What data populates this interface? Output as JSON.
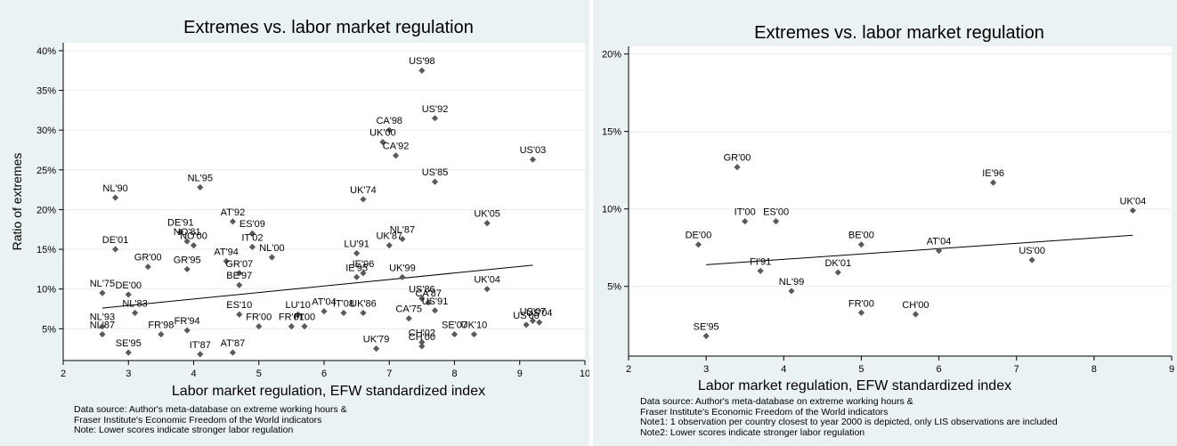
{
  "colors": {
    "panel_bg": "#eaf2f3",
    "plot_bg": "#ffffff",
    "grid": "#e6eeef",
    "marker": "#5a5a5a",
    "text": "#000000"
  },
  "left": {
    "notes": [
      "Data source: Author's meta-database on extreme working hours &",
      "Fraser Institute's Economic Freedom of the World indicators",
      "Note: Lower scores indicate stronger labor regulation"
    ]
  },
  "right": {
    "notes": [
      "Data source: Author's meta-database on extreme working hours &",
      "Fraser Institute's Economic Freedom of the World indicators",
      "Note1: 1 observation per country closest to year 2000 is depicted, only LIS observations are included",
      "Note2: Lower scores indicate stronger labor regulation"
    ]
  },
  "chart_data": [
    {
      "type": "scatter",
      "title": "Extremes vs. labor market regulation",
      "xlabel": "Labor market regulation, EFW standardized index",
      "ylabel": "Ratio of extremes",
      "xlim": [
        2,
        10
      ],
      "ylim": [
        1,
        41
      ],
      "xticks": [
        2,
        3,
        4,
        5,
        6,
        7,
        8,
        9,
        10
      ],
      "xtick_labels": [
        "2",
        "3",
        "4",
        "5",
        "6",
        "7",
        "8",
        "9",
        "10"
      ],
      "yticks": [
        5,
        10,
        15,
        20,
        25,
        30,
        35,
        40
      ],
      "ytick_labels": [
        "5%",
        "10%",
        "15%",
        "20%",
        "25%",
        "30%",
        "35%",
        "40%"
      ],
      "grid": true,
      "fit_line": {
        "x": [
          2.6,
          9.2
        ],
        "y": [
          7.6,
          13.0
        ]
      },
      "points": [
        {
          "label": "US'98",
          "x": 7.5,
          "y": 37.5
        },
        {
          "label": "US'92",
          "x": 7.7,
          "y": 31.5
        },
        {
          "label": "CA'98",
          "x": 7.0,
          "y": 30.0
        },
        {
          "label": "UK'00",
          "x": 6.9,
          "y": 28.5
        },
        {
          "label": "CA'92",
          "x": 7.1,
          "y": 26.8
        },
        {
          "label": "US'03",
          "x": 9.2,
          "y": 26.3
        },
        {
          "label": "US'85",
          "x": 7.7,
          "y": 23.5
        },
        {
          "label": "NL'90",
          "x": 2.8,
          "y": 21.5
        },
        {
          "label": "NL'95",
          "x": 4.1,
          "y": 22.8
        },
        {
          "label": "UK'74",
          "x": 6.6,
          "y": 21.3
        },
        {
          "label": "UK'05",
          "x": 8.5,
          "y": 18.3
        },
        {
          "label": "AT'92",
          "x": 4.6,
          "y": 18.5
        },
        {
          "label": "ES'09",
          "x": 4.9,
          "y": 17.0
        },
        {
          "label": "DE'91",
          "x": 3.8,
          "y": 17.2
        },
        {
          "label": "NO'81",
          "x": 3.9,
          "y": 16.0
        },
        {
          "label": "NO'00",
          "x": 4.0,
          "y": 15.5
        },
        {
          "label": "IT'02",
          "x": 4.9,
          "y": 15.3
        },
        {
          "label": "DE'01",
          "x": 2.8,
          "y": 15.0
        },
        {
          "label": "NL'00",
          "x": 5.2,
          "y": 14.0
        },
        {
          "label": "NL'87",
          "x": 7.2,
          "y": 16.3
        },
        {
          "label": "UK'87",
          "x": 7.0,
          "y": 15.5
        },
        {
          "label": "LU'91",
          "x": 6.5,
          "y": 14.5
        },
        {
          "label": "AT'94",
          "x": 4.5,
          "y": 13.5
        },
        {
          "label": "GR'00",
          "x": 3.3,
          "y": 12.8
        },
        {
          "label": "GR'95",
          "x": 3.9,
          "y": 12.5
        },
        {
          "label": "GR'07",
          "x": 4.7,
          "y": 12.0
        },
        {
          "label": "IE'96",
          "x": 6.6,
          "y": 12.0
        },
        {
          "label": "IE'95",
          "x": 6.5,
          "y": 11.5
        },
        {
          "label": "UK'99",
          "x": 7.2,
          "y": 11.5
        },
        {
          "label": "BE'97",
          "x": 4.7,
          "y": 10.5
        },
        {
          "label": "NL'75",
          "x": 2.6,
          "y": 9.5
        },
        {
          "label": "DE'00",
          "x": 3.0,
          "y": 9.3
        },
        {
          "label": "UK'04",
          "x": 8.5,
          "y": 10.0
        },
        {
          "label": "US'86",
          "x": 7.5,
          "y": 8.8
        },
        {
          "label": "AT'04",
          "x": 6.0,
          "y": 7.2
        },
        {
          "label": "CA'87",
          "x": 7.6,
          "y": 8.3
        },
        {
          "label": "US'91",
          "x": 7.7,
          "y": 7.3
        },
        {
          "label": "UK'86",
          "x": 6.6,
          "y": 7.0
        },
        {
          "label": "IT'08",
          "x": 6.3,
          "y": 7.0
        },
        {
          "label": "LU'10",
          "x": 5.6,
          "y": 6.8
        },
        {
          "label": "ES'10",
          "x": 4.7,
          "y": 6.8
        },
        {
          "label": "CA'75",
          "x": 7.3,
          "y": 6.3
        },
        {
          "label": "NL'83",
          "x": 3.1,
          "y": 7.0
        },
        {
          "label": "NL'93",
          "x": 2.6,
          "y": 5.3
        },
        {
          "label": "NL'87",
          "x": 2.6,
          "y": 4.3
        },
        {
          "label": "SE'95",
          "x": 3.0,
          "y": 2.0
        },
        {
          "label": "FR'98",
          "x": 3.5,
          "y": 4.3
        },
        {
          "label": "FR'94",
          "x": 3.9,
          "y": 4.8
        },
        {
          "label": "IT'87",
          "x": 4.1,
          "y": 1.8
        },
        {
          "label": "AT'87",
          "x": 4.6,
          "y": 2.0
        },
        {
          "label": "FR'00",
          "x": 5.0,
          "y": 5.3
        },
        {
          "label": "FR'01",
          "x": 5.5,
          "y": 5.3
        },
        {
          "label": "FI'00",
          "x": 5.7,
          "y": 5.3
        },
        {
          "label": "UK'79",
          "x": 6.8,
          "y": 2.5
        },
        {
          "label": "CH'02",
          "x": 7.5,
          "y": 3.3
        },
        {
          "label": "CH'00",
          "x": 7.5,
          "y": 2.8
        },
        {
          "label": "SE'07",
          "x": 8.0,
          "y": 4.3
        },
        {
          "label": "UK'10",
          "x": 8.3,
          "y": 4.3
        },
        {
          "label": "US'07",
          "x": 9.2,
          "y": 6.0
        },
        {
          "label": "US'04",
          "x": 9.3,
          "y": 5.8
        },
        {
          "label": "US'00",
          "x": 9.1,
          "y": 5.5
        }
      ]
    },
    {
      "type": "scatter",
      "title": "Extremes vs. labor market regulation",
      "xlabel": "Labor market regulation, EFW standardized index",
      "ylabel": "",
      "xlim": [
        2,
        9
      ],
      "ylim": [
        0.5,
        20.5
      ],
      "xticks": [
        2,
        3,
        4,
        5,
        6,
        7,
        8,
        9
      ],
      "xtick_labels": [
        "2",
        "3",
        "4",
        "5",
        "6",
        "7",
        "8",
        "9"
      ],
      "yticks": [
        5,
        10,
        15,
        20
      ],
      "ytick_labels": [
        "5%",
        "10%",
        "15%",
        "20%"
      ],
      "grid": true,
      "fit_line": {
        "x": [
          3.0,
          8.5
        ],
        "y": [
          6.4,
          8.3
        ]
      },
      "points": [
        {
          "label": "GR'00",
          "x": 3.4,
          "y": 12.7
        },
        {
          "label": "IE'96",
          "x": 6.7,
          "y": 11.7
        },
        {
          "label": "UK'04",
          "x": 8.5,
          "y": 9.9
        },
        {
          "label": "IT'00",
          "x": 3.5,
          "y": 9.2
        },
        {
          "label": "ES'00",
          "x": 3.9,
          "y": 9.2
        },
        {
          "label": "DE'00",
          "x": 2.9,
          "y": 7.7
        },
        {
          "label": "BE'00",
          "x": 5.0,
          "y": 7.7
        },
        {
          "label": "AT'04",
          "x": 6.0,
          "y": 7.3
        },
        {
          "label": "US'00",
          "x": 7.2,
          "y": 6.7
        },
        {
          "label": "FI'91",
          "x": 3.7,
          "y": 6.0
        },
        {
          "label": "DK'01",
          "x": 4.7,
          "y": 5.9
        },
        {
          "label": "NL'99",
          "x": 4.1,
          "y": 4.7
        },
        {
          "label": "FR'00",
          "x": 5.0,
          "y": 3.3
        },
        {
          "label": "CH'00",
          "x": 5.7,
          "y": 3.2
        },
        {
          "label": "SE'95",
          "x": 3.0,
          "y": 1.8
        }
      ]
    }
  ]
}
